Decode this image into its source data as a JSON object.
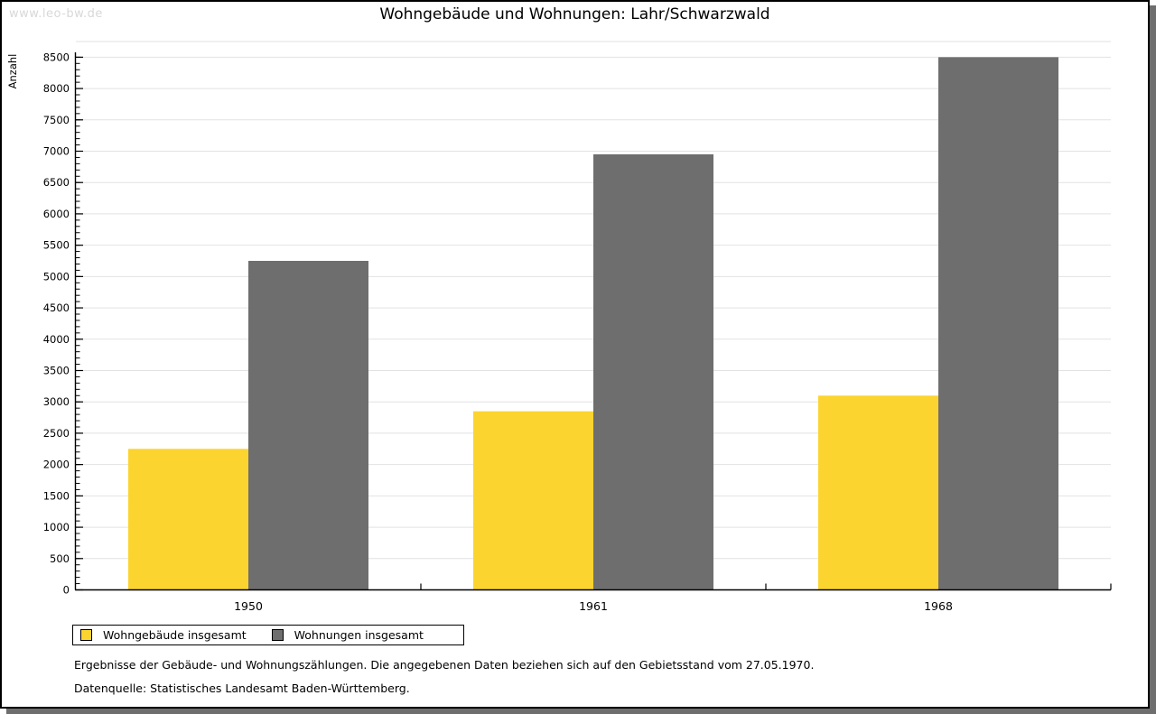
{
  "watermark": "www.leo-bw.de",
  "header": {
    "title": "Wohngebäude und Wohnungen: Lahr/Schwarzwald"
  },
  "chart_data": {
    "type": "bar",
    "title": "Wohngebäude und Wohnungen: Lahr/Schwarzwald",
    "xlabel": "",
    "ylabel": "Anzahl",
    "categories": [
      "1950",
      "1961",
      "1968"
    ],
    "series": [
      {
        "name": "Wohngebäude insgesamt",
        "color": "#fcd42f",
        "values": [
          2250,
          2850,
          3100
        ]
      },
      {
        "name": "Wohnungen insgesamt",
        "color": "#6e6e6e",
        "values": [
          5250,
          6950,
          8500
        ]
      }
    ],
    "ylim": [
      0,
      8750
    ],
    "y_major_step": 500,
    "y_minor_step": 100,
    "y_max_labeled_tick": 8500,
    "grid": "horizontal-major",
    "gridline_color": "#e2e2e2",
    "axis_color": "#000000",
    "legend_position": "bottom-left"
  },
  "legend": {
    "items": [
      {
        "label": "Wohngebäude insgesamt",
        "color": "#fcd42f"
      },
      {
        "label": "Wohnungen insgesamt",
        "color": "#6e6e6e"
      }
    ]
  },
  "footnotes": [
    "Ergebnisse der Gebäude- und Wohnungszählungen. Die angegebenen Daten beziehen sich auf den Gebietsstand vom 27.05.1970.",
    "Datenquelle: Statistisches Landesamt Baden-Württemberg."
  ],
  "colors": {
    "frame_border": "#000000",
    "frame_shadow": "#6e6e6e",
    "watermark": "#d8d8d8",
    "background": "#ffffff"
  }
}
